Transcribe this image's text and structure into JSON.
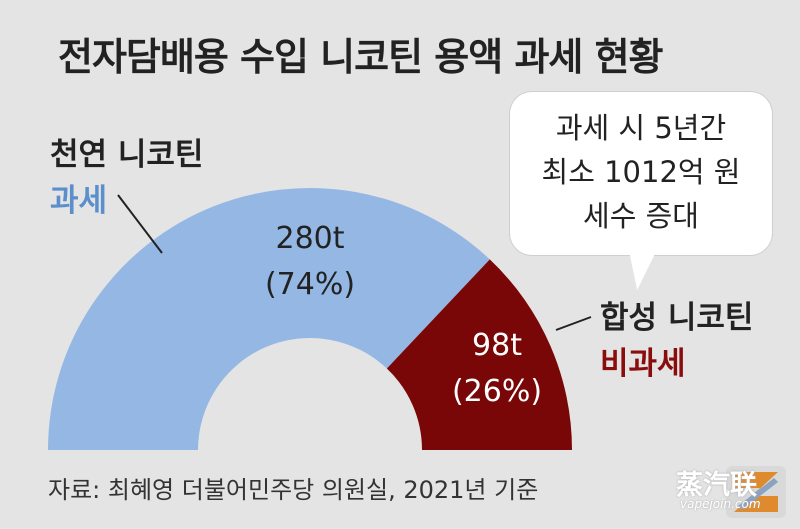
{
  "chart_data": {
    "type": "pie",
    "title": "전자담배용 수입 니코틴 용액 과세 현황",
    "slices": [
      {
        "name": "천연 니코틴",
        "status": "과세",
        "value": 280,
        "value_label": "280t",
        "percent_label": "(74%)",
        "color": "#94b8e3"
      },
      {
        "name": "합성 니코틴",
        "status": "비과세",
        "value": 98,
        "value_label": "98t",
        "percent_label": "(26%)",
        "color": "#7a0707"
      }
    ]
  },
  "callout": {
    "lines": [
      "과세 시 5년간",
      "최소 1012억 원",
      "세수 증대"
    ]
  },
  "source": "자료: 최혜영 더불어민주당 의원실, 2021년 기준",
  "watermark": {
    "text": "蒸汽联",
    "url": "vapejoin.com"
  }
}
